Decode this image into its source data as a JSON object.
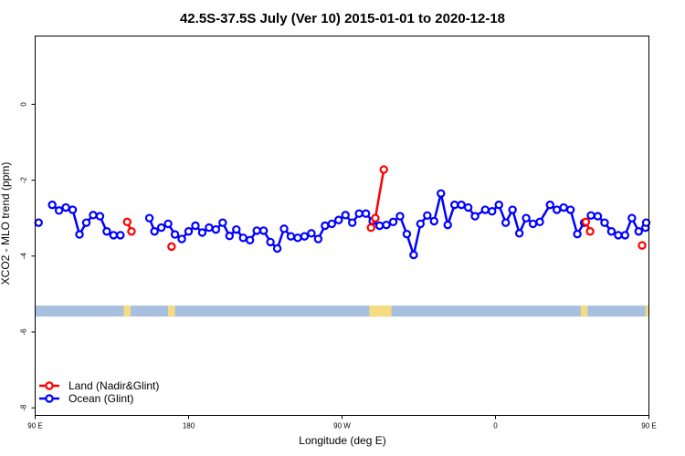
{
  "chart_data": {
    "type": "line",
    "title": "42.5S-37.5S July (Ver 10)   2015-01-01 to 2020-12-18",
    "xlabel": "Longitude (deg E)",
    "ylabel": "XCO2 - MLO trend (ppm)",
    "xlim": [
      90,
      450
    ],
    "ylim": [
      -8.2,
      1.8
    ],
    "x_ticks": [
      {
        "value": 90,
        "label": "90 E"
      },
      {
        "value": 180,
        "label": "180"
      },
      {
        "value": 270,
        "label": "90 W"
      },
      {
        "value": 360,
        "label": "0"
      },
      {
        "value": 450,
        "label": "90 E"
      },
      {
        "value": 540,
        "label": "180"
      }
    ],
    "y_ticks": [
      {
        "value": 0,
        "label": "0"
      },
      {
        "value": -2,
        "label": "-2"
      },
      {
        "value": -4,
        "label": "-4"
      },
      {
        "value": -6,
        "label": "-6"
      },
      {
        "value": -8,
        "label": "-8"
      }
    ],
    "grid": false,
    "legend_position": "bottom-left",
    "land_strip": {
      "y": -5.45,
      "ocean_color": "#a8c0e0",
      "land_color": "#f5dc80",
      "land_ranges": [
        [
          142,
          146
        ],
        [
          168,
          172
        ],
        [
          286,
          299
        ],
        [
          410,
          414
        ],
        [
          448,
          450
        ]
      ]
    },
    "series": [
      {
        "name": "Land (Nadir&Glint)",
        "color": "#ff0000",
        "points": [
          [
            144,
            -3.1
          ],
          [
            146.5,
            -3.35
          ],
          [
            170,
            -3.75
          ],
          [
            287,
            -3.25
          ],
          [
            289.5,
            -3.0
          ],
          [
            294.5,
            -1.72
          ],
          [
            413,
            -3.1
          ],
          [
            415.5,
            -3.35
          ],
          [
            446,
            -3.72
          ]
        ]
      },
      {
        "name": "Ocean (Glint)",
        "color": "#0000ff",
        "points": [
          [
            92,
            -3.12
          ],
          [
            100,
            -2.65
          ],
          [
            104,
            -2.8
          ],
          [
            108,
            -2.72
          ],
          [
            112,
            -2.78
          ],
          [
            116,
            -3.43
          ],
          [
            120,
            -3.12
          ],
          [
            124,
            -2.92
          ],
          [
            128,
            -2.95
          ],
          [
            132,
            -3.35
          ],
          [
            136,
            -3.45
          ],
          [
            140,
            -3.45
          ],
          [
            157,
            -3.0
          ],
          [
            160,
            -3.35
          ],
          [
            164,
            -3.25
          ],
          [
            168,
            -3.15
          ],
          [
            172,
            -3.43
          ],
          [
            176,
            -3.55
          ],
          [
            180,
            -3.35
          ],
          [
            184,
            -3.2
          ],
          [
            188,
            -3.38
          ],
          [
            192,
            -3.25
          ],
          [
            196,
            -3.3
          ],
          [
            200,
            -3.12
          ],
          [
            204,
            -3.47
          ],
          [
            208,
            -3.3
          ],
          [
            212,
            -3.52
          ],
          [
            216,
            -3.58
          ],
          [
            220,
            -3.33
          ],
          [
            224,
            -3.33
          ],
          [
            228,
            -3.63
          ],
          [
            232,
            -3.8
          ],
          [
            236,
            -3.28
          ],
          [
            240,
            -3.48
          ],
          [
            244,
            -3.52
          ],
          [
            248,
            -3.48
          ],
          [
            252,
            -3.4
          ],
          [
            256,
            -3.55
          ],
          [
            260,
            -3.2
          ],
          [
            264,
            -3.15
          ],
          [
            268,
            -3.05
          ],
          [
            272,
            -2.92
          ],
          [
            276,
            -3.12
          ],
          [
            280,
            -2.88
          ],
          [
            284,
            -2.88
          ],
          [
            288,
            -3.08
          ],
          [
            292,
            -3.2
          ],
          [
            296,
            -3.18
          ],
          [
            300,
            -3.1
          ],
          [
            304,
            -2.95
          ],
          [
            308,
            -3.42
          ],
          [
            312,
            -3.97
          ],
          [
            316,
            -3.15
          ],
          [
            320,
            -2.93
          ],
          [
            324,
            -3.08
          ],
          [
            328,
            -2.35
          ],
          [
            332,
            -3.18
          ],
          [
            336,
            -2.65
          ],
          [
            340,
            -2.65
          ],
          [
            344,
            -2.72
          ],
          [
            348,
            -2.95
          ],
          [
            354,
            -2.78
          ],
          [
            358,
            -2.82
          ],
          [
            362,
            -2.65
          ],
          [
            366,
            -3.12
          ],
          [
            370,
            -2.78
          ],
          [
            374,
            -3.4
          ],
          [
            378,
            -3.0
          ],
          [
            382,
            -3.15
          ],
          [
            386,
            -3.1
          ],
          [
            392,
            -2.65
          ],
          [
            396,
            -2.78
          ],
          [
            400,
            -2.72
          ],
          [
            404,
            -2.78
          ],
          [
            408,
            -3.42
          ],
          [
            412,
            -3.12
          ],
          [
            416,
            -2.93
          ],
          [
            420,
            -2.95
          ],
          [
            424,
            -3.12
          ],
          [
            428,
            -3.35
          ],
          [
            432,
            -3.45
          ],
          [
            436,
            -3.45
          ],
          [
            440,
            -3.0
          ],
          [
            444,
            -3.35
          ],
          [
            448,
            -3.25
          ],
          [
            452,
            -3.12
          ]
        ]
      }
    ]
  }
}
